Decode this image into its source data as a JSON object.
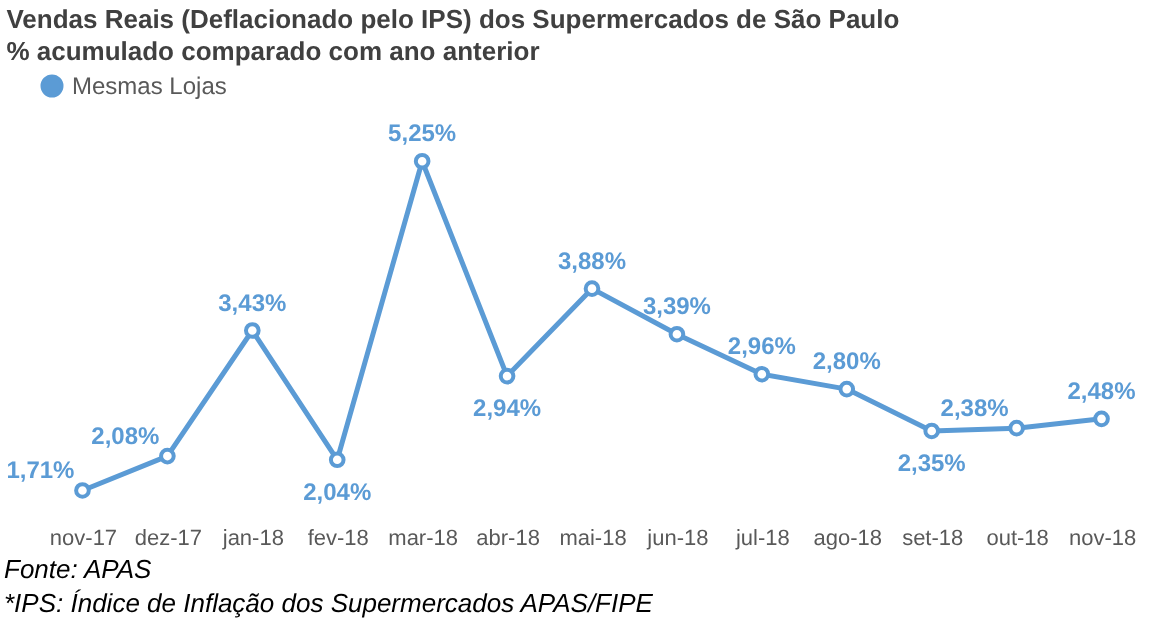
{
  "chart_data": {
    "type": "line",
    "title": "Vendas Reais (Deflacionado pelo IPS) dos Supermercados de São Paulo",
    "subtitle": "% acumulado comparado com  ano anterior",
    "categories": [
      "nov-17",
      "dez-17",
      "jan-18",
      "fev-18",
      "mar-18",
      "abr-18",
      "mai-18",
      "jun-18",
      "jul-18",
      "ago-18",
      "set-18",
      "out-18",
      "nov-18"
    ],
    "series": [
      {
        "name": "Mesmas Lojas",
        "color": "#5b9bd5",
        "values": [
          1.71,
          2.08,
          3.43,
          2.04,
          5.25,
          2.94,
          3.88,
          3.39,
          2.96,
          2.8,
          2.35,
          2.38,
          2.48
        ],
        "value_labels": [
          "1,71%",
          "2,08%",
          "3,43%",
          "2,04%",
          "5,25%",
          "2,94%",
          "3,88%",
          "3,39%",
          "2,96%",
          "2,80%",
          "2,35%",
          "2,38%",
          "2,48%"
        ]
      }
    ],
    "legend": "top",
    "marker": "circle",
    "line_style": "solid",
    "grid": false,
    "tick_labels": "x",
    "annotations": [
      "Fonte: APAS",
      "*IPS: Índice de Inflação dos Supermercados APAS/FIPE"
    ]
  }
}
